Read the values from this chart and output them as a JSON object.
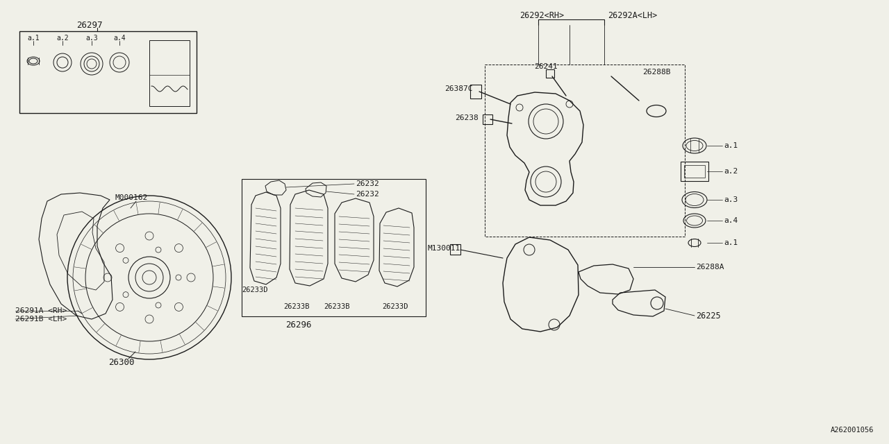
{
  "bg_color": "#f0f0e8",
  "line_color": "#1a1a1a",
  "ref_number": "A262001056",
  "parts": {
    "kit_label": "26297",
    "brake_disc": "26300",
    "shield_rh": "26291A <RH>",
    "shield_lh": "26291B <LH>",
    "caliper_rh": "26292<RH>",
    "caliper_lh": "26292A<LH>",
    "knuckle": "26225",
    "bolt_26387c": "26387C",
    "bolt_26241": "26241",
    "bolt_26288b": "26288B",
    "bolt_26238": "26238",
    "pad_26233b": "26233B",
    "pad_26233d": "26233D",
    "clip_26232": "26232",
    "pad_kit": "26296",
    "m000162": "M000162",
    "m130011": "M130011",
    "bolt_26288a": "26288A"
  }
}
